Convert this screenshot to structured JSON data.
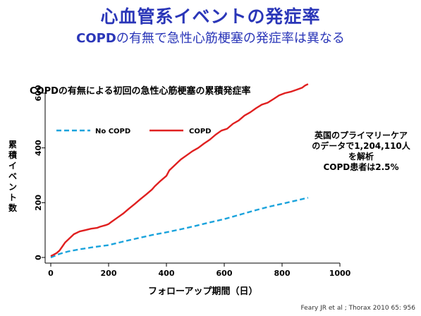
{
  "slide": {
    "title": "心血管系イベントの発症率",
    "subtitle_em": "COPD",
    "subtitle_rest": "の有無で急性心筋梗塞の発症率は異なる",
    "source": "Feary JR et al ; Thorax 2010 65: 956"
  },
  "annotation": {
    "lines": [
      "英国のプライマリーケア",
      "のデータで1,204,110人",
      "を解析",
      "COPD患者は2.5%"
    ]
  },
  "chart_data": {
    "type": "line",
    "title": "COPDの有無による初回の急性心筋梗塞の累積発症率",
    "xlabel": "フォローアップ期間（日）",
    "ylabel": "累積イベント数",
    "xlim": [
      0,
      1000
    ],
    "ylim": [
      0,
      600
    ],
    "xticks": [
      0,
      200,
      400,
      600,
      800,
      1000
    ],
    "yticks": [
      0,
      200,
      400,
      600
    ],
    "grid": false,
    "legend_position": "top-left",
    "series": [
      {
        "name": "No COPD",
        "color": "#1aa3dc",
        "style": "dashed",
        "x": [
          0,
          30,
          60,
          100,
          150,
          200,
          250,
          300,
          350,
          400,
          450,
          500,
          550,
          600,
          650,
          700,
          750,
          800,
          850,
          890
        ],
        "y": [
          0,
          13,
          22,
          30,
          38,
          45,
          58,
          70,
          82,
          92,
          103,
          115,
          128,
          140,
          155,
          170,
          184,
          196,
          208,
          218
        ]
      },
      {
        "name": "COPD",
        "color": "#e02020",
        "style": "solid",
        "x": [
          0,
          10,
          20,
          30,
          40,
          50,
          60,
          70,
          80,
          100,
          120,
          140,
          160,
          170,
          190,
          200,
          210,
          230,
          250,
          270,
          290,
          310,
          330,
          350,
          360,
          380,
          400,
          410,
          430,
          450,
          470,
          490,
          510,
          530,
          550,
          570,
          590,
          610,
          630,
          650,
          670,
          690,
          710,
          730,
          750,
          770,
          790,
          810,
          830,
          850,
          870,
          880,
          890
        ],
        "y": [
          5,
          10,
          16,
          25,
          40,
          55,
          65,
          75,
          85,
          95,
          100,
          105,
          108,
          112,
          118,
          122,
          130,
          145,
          160,
          178,
          195,
          213,
          230,
          248,
          260,
          280,
          298,
          318,
          338,
          358,
          373,
          388,
          400,
          416,
          430,
          448,
          463,
          470,
          488,
          500,
          518,
          530,
          545,
          558,
          565,
          578,
          592,
          600,
          605,
          612,
          620,
          628,
          633
        ]
      }
    ]
  }
}
